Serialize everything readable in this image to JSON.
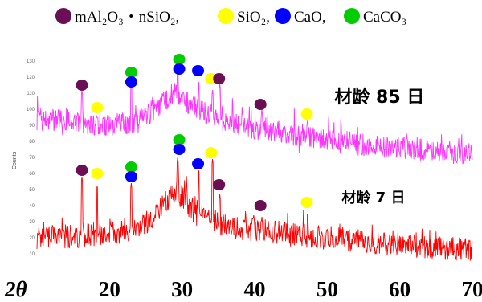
{
  "chart_data": {
    "type": "line",
    "xlabel": "2θ",
    "ylabel": "Counts",
    "xlim": [
      10,
      70
    ],
    "ylim": [
      0,
      140
    ],
    "x_ticks": [
      "20",
      "30",
      "40",
      "50",
      "60",
      "70"
    ],
    "y_ticks": [
      "10",
      "20",
      "30",
      "40",
      "50",
      "60",
      "70",
      "80",
      "90",
      "100",
      "110",
      "120",
      "130"
    ],
    "legend": [
      {
        "label": "mAl₂O₃・nSiO₂,",
        "color": "#6b0f55"
      },
      {
        "label": "SiO₂,",
        "color": "#ffff00"
      },
      {
        "label": "CaO,",
        "color": "#0000ff"
      },
      {
        "label": "CaCO₃",
        "color": "#00cc00"
      }
    ],
    "series": [
      {
        "name": "材龄 85 日",
        "color": "#ff33ff",
        "baseline": [
          [
            10,
            94
          ],
          [
            15,
            92
          ],
          [
            20,
            90
          ],
          [
            24,
            92
          ],
          [
            27,
            103
          ],
          [
            29,
            111
          ],
          [
            31,
            103
          ],
          [
            33,
            98
          ],
          [
            35,
            94
          ],
          [
            38,
            90
          ],
          [
            40,
            88
          ],
          [
            45,
            84
          ],
          [
            50,
            81
          ],
          [
            55,
            78
          ],
          [
            60,
            76
          ],
          [
            65,
            74
          ],
          [
            70,
            72
          ]
        ],
        "peaks": [
          [
            16.2,
            112
          ],
          [
            18.3,
            96
          ],
          [
            23.0,
            116
          ],
          [
            29.4,
            124
          ],
          [
            32.3,
            118
          ],
          [
            34.2,
            112
          ],
          [
            35.2,
            116
          ],
          [
            41.0,
            100
          ],
          [
            47.3,
            94
          ]
        ]
      },
      {
        "name": "材龄 7 日",
        "color": "#ff0000",
        "baseline": [
          [
            10,
            20
          ],
          [
            15,
            21
          ],
          [
            20,
            23
          ],
          [
            24,
            25
          ],
          [
            27,
            38
          ],
          [
            29,
            50
          ],
          [
            31,
            40
          ],
          [
            33,
            33
          ],
          [
            35,
            29
          ],
          [
            38,
            26
          ],
          [
            40,
            25
          ],
          [
            45,
            22
          ],
          [
            50,
            20
          ],
          [
            55,
            18
          ],
          [
            60,
            16
          ],
          [
            65,
            14
          ],
          [
            70,
            12
          ]
        ],
        "peaks": [
          [
            16.2,
            58
          ],
          [
            18.3,
            53
          ],
          [
            23.0,
            54
          ],
          [
            29.4,
            70
          ],
          [
            32.3,
            63
          ],
          [
            34.2,
            69
          ],
          [
            35.2,
            47
          ],
          [
            41.0,
            33
          ],
          [
            47.3,
            36
          ]
        ]
      }
    ],
    "markers": [
      {
        "phase": "mAl2O3",
        "x": 16.2,
        "y": 115
      },
      {
        "phase": "SiO2",
        "x": 18.3,
        "y": 101
      },
      {
        "phase": "CaCO3",
        "x": 23.0,
        "y": 123
      },
      {
        "phase": "CaO",
        "x": 23.0,
        "y": 117
      },
      {
        "phase": "CaCO3",
        "x": 29.6,
        "y": 131
      },
      {
        "phase": "CaO",
        "x": 29.6,
        "y": 125
      },
      {
        "phase": "CaO",
        "x": 32.2,
        "y": 124
      },
      {
        "phase": "SiO2",
        "x": 34.0,
        "y": 119
      },
      {
        "phase": "mAl2O3",
        "x": 35.1,
        "y": 119
      },
      {
        "phase": "mAl2O3",
        "x": 40.8,
        "y": 103
      },
      {
        "phase": "SiO2",
        "x": 47.2,
        "y": 97
      },
      {
        "phase": "mAl2O3",
        "x": 16.2,
        "y": 62
      },
      {
        "phase": "SiO2",
        "x": 18.3,
        "y": 60
      },
      {
        "phase": "CaCO3",
        "x": 23.0,
        "y": 64
      },
      {
        "phase": "CaO",
        "x": 23.0,
        "y": 58
      },
      {
        "phase": "CaCO3",
        "x": 29.6,
        "y": 81
      },
      {
        "phase": "CaO",
        "x": 29.6,
        "y": 75
      },
      {
        "phase": "CaO",
        "x": 32.2,
        "y": 66
      },
      {
        "phase": "SiO2",
        "x": 34.0,
        "y": 73
      },
      {
        "phase": "mAl2O3",
        "x": 35.1,
        "y": 53
      },
      {
        "phase": "mAl2O3",
        "x": 40.8,
        "y": 40
      },
      {
        "phase": "SiO2",
        "x": 47.2,
        "y": 42
      }
    ],
    "annotations": [
      {
        "text": "材龄 85 日",
        "x": 51,
        "y": 104
      },
      {
        "text": "材龄 7 日",
        "x": 52,
        "y": 42
      }
    ],
    "grid": false,
    "legend_position": "top"
  }
}
